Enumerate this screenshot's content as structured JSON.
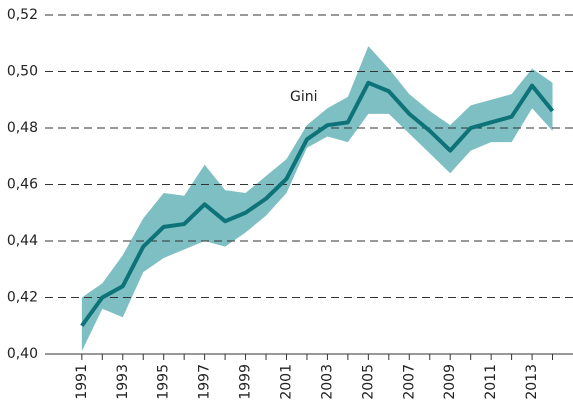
{
  "chart_data": {
    "type": "line",
    "x": [
      1991,
      1992,
      1993,
      1994,
      1995,
      1996,
      1997,
      1998,
      1999,
      2000,
      2001,
      2002,
      2003,
      2004,
      2005,
      2006,
      2007,
      2008,
      2009,
      2010,
      2011,
      2012,
      2013,
      2014
    ],
    "series": [
      {
        "name": "Gini",
        "color": "#0e7378",
        "values": [
          0.41,
          0.42,
          0.424,
          0.438,
          0.445,
          0.446,
          0.453,
          0.447,
          0.45,
          0.455,
          0.462,
          0.476,
          0.481,
          0.482,
          0.496,
          0.493,
          0.485,
          0.479,
          0.472,
          0.48,
          0.482,
          0.484,
          0.495,
          0.486
        ]
      }
    ],
    "band": {
      "color": "#7dbfc3",
      "upper": [
        0.42,
        0.425,
        0.435,
        0.448,
        0.457,
        0.456,
        0.467,
        0.458,
        0.457,
        0.463,
        0.469,
        0.481,
        0.487,
        0.491,
        0.509,
        0.501,
        0.492,
        0.486,
        0.481,
        0.488,
        0.49,
        0.492,
        0.501,
        0.496
      ],
      "lower": [
        0.401,
        0.416,
        0.413,
        0.429,
        0.434,
        0.437,
        0.44,
        0.438,
        0.443,
        0.449,
        0.457,
        0.473,
        0.477,
        0.475,
        0.485,
        0.485,
        0.478,
        0.471,
        0.464,
        0.472,
        0.475,
        0.475,
        0.487,
        0.479
      ]
    },
    "xlim": [
      1989.2,
      2015
    ],
    "xticks": [
      1991,
      1993,
      1995,
      1997,
      1999,
      2001,
      2003,
      2005,
      2007,
      2009,
      2011,
      2013
    ],
    "ylim": [
      0.4,
      0.52
    ],
    "yticks": [
      {
        "value": 0.4,
        "label": "0,40"
      },
      {
        "value": 0.42,
        "label": "0,42"
      },
      {
        "value": 0.44,
        "label": "0,44"
      },
      {
        "value": 0.46,
        "label": "0,46"
      },
      {
        "value": 0.48,
        "label": "0,48"
      },
      {
        "value": 0.5,
        "label": "0,50"
      },
      {
        "value": 0.52,
        "label": "0,52"
      }
    ],
    "grid": true
  }
}
